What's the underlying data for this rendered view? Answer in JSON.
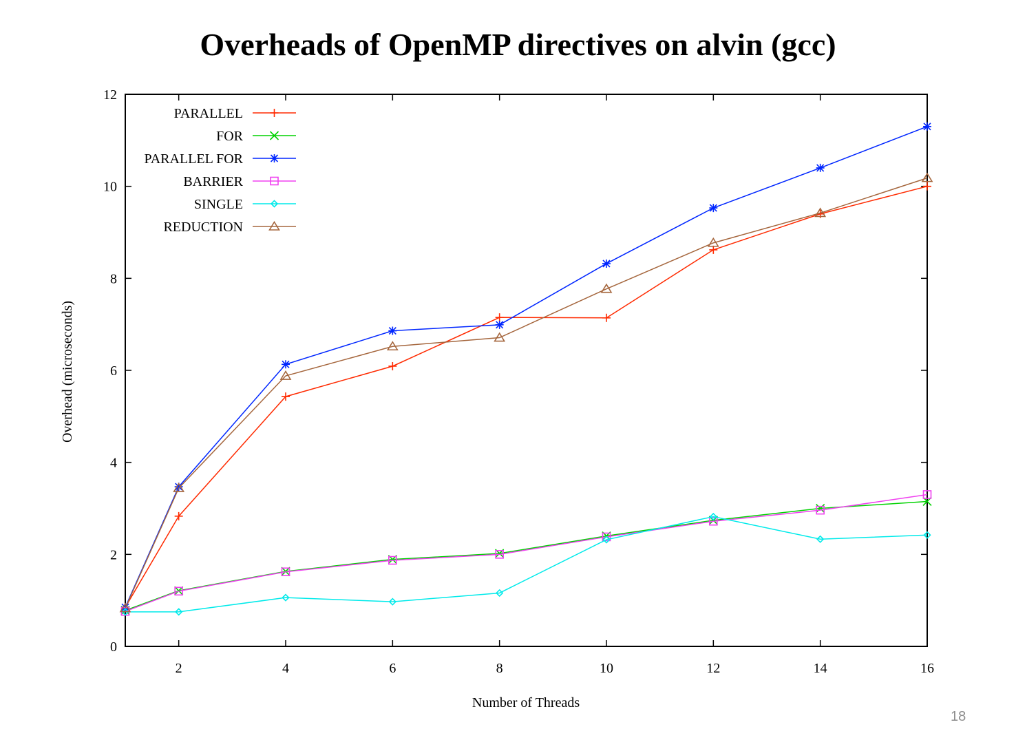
{
  "slide": {
    "title": "Overheads of OpenMP directives on alvin (gcc)",
    "page_number": "18"
  },
  "chart_data": {
    "type": "line",
    "xlabel": "Number of Threads",
    "ylabel": "Overhead (microseconds)",
    "xlim": [
      1,
      16
    ],
    "ylim": [
      0,
      12
    ],
    "xticks": [
      2,
      4,
      6,
      8,
      10,
      12,
      14,
      16
    ],
    "yticks": [
      0,
      2,
      4,
      6,
      8,
      10,
      12
    ],
    "grid": false,
    "legend_position": "top-left",
    "x": [
      1,
      2,
      4,
      6,
      8,
      10,
      12,
      14,
      16
    ],
    "series": [
      {
        "name": "PARALLEL",
        "color": "#ff2a00",
        "marker": "plus",
        "values": [
          0.85,
          2.83,
          5.43,
          6.09,
          7.15,
          7.14,
          8.62,
          9.4,
          10.0
        ]
      },
      {
        "name": "FOR",
        "color": "#00d200",
        "marker": "cross",
        "values": [
          0.78,
          1.21,
          1.63,
          1.89,
          2.02,
          2.4,
          2.74,
          3.0,
          3.15
        ]
      },
      {
        "name": "PARALLEL FOR",
        "color": "#0026ff",
        "marker": "star",
        "values": [
          0.85,
          3.47,
          6.13,
          6.86,
          6.99,
          8.32,
          9.53,
          10.4,
          11.3
        ]
      },
      {
        "name": "BARRIER",
        "color": "#f040f0",
        "marker": "square",
        "values": [
          0.76,
          1.2,
          1.62,
          1.87,
          2.0,
          2.38,
          2.72,
          2.96,
          3.3
        ]
      },
      {
        "name": "SINGLE",
        "color": "#00eaea",
        "marker": "diamond",
        "values": [
          0.75,
          0.75,
          1.06,
          0.97,
          1.16,
          2.32,
          2.82,
          2.33,
          2.42
        ]
      },
      {
        "name": "REDUCTION",
        "color": "#a5663d",
        "marker": "triangle",
        "values": [
          0.83,
          3.44,
          5.88,
          6.52,
          6.71,
          7.77,
          8.77,
          9.42,
          10.18
        ]
      }
    ]
  }
}
